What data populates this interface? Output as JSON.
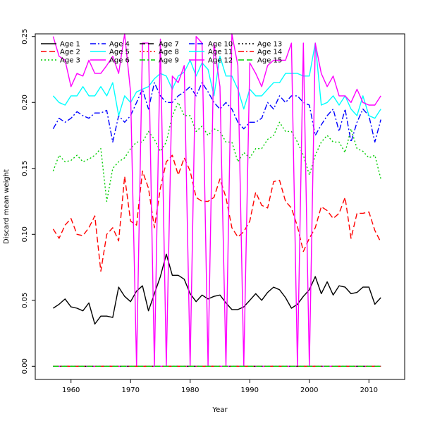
{
  "chart_data": {
    "type": "line",
    "title": "",
    "xlabel": "Year",
    "ylabel": "Discard mean weight",
    "xlim": [
      1954,
      2016
    ],
    "ylim": [
      -0.01,
      0.252
    ],
    "x_ticks": [
      1960,
      1970,
      1980,
      1990,
      2000,
      2010
    ],
    "y_ticks": [
      0.0,
      0.05,
      0.1,
      0.15,
      0.2,
      0.25
    ],
    "y_tick_labels": [
      "0.00",
      "0.05",
      "0.10",
      "0.15",
      "0.20",
      "0.25"
    ],
    "grid": false,
    "legend_position": "top-left",
    "x": [
      1957,
      1958,
      1959,
      1960,
      1961,
      1962,
      1963,
      1964,
      1965,
      1966,
      1967,
      1968,
      1969,
      1970,
      1971,
      1972,
      1973,
      1974,
      1975,
      1976,
      1977,
      1978,
      1979,
      1980,
      1981,
      1982,
      1983,
      1984,
      1985,
      1986,
      1987,
      1988,
      1989,
      1990,
      1991,
      1992,
      1993,
      1994,
      1995,
      1996,
      1997,
      1998,
      1999,
      2000,
      2001,
      2002,
      2003,
      2004,
      2005,
      2006,
      2007,
      2008,
      2009,
      2010,
      2011,
      2012
    ],
    "series": [
      {
        "name": "Age 1",
        "color": "#000000",
        "dash": "solid",
        "values": [
          0.044,
          0.047,
          0.051,
          0.045,
          0.044,
          0.042,
          0.048,
          0.032,
          0.038,
          0.038,
          0.037,
          0.06,
          0.053,
          0.049,
          0.057,
          0.061,
          0.042,
          0.055,
          0.068,
          0.085,
          0.069,
          0.069,
          0.066,
          0.055,
          0.049,
          0.054,
          0.051,
          0.053,
          0.054,
          0.048,
          0.043,
          0.043,
          0.045,
          0.05,
          0.055,
          0.05,
          0.056,
          0.06,
          0.058,
          0.052,
          0.044,
          0.047,
          0.053,
          0.058,
          0.068,
          0.055,
          0.064,
          0.054,
          0.061,
          0.06,
          0.055,
          0.056,
          0.06,
          0.06,
          0.047,
          0.052
        ]
      },
      {
        "name": "Age 2",
        "color": "#ff0000",
        "dash": "8,4",
        "values": [
          0.104,
          0.097,
          0.107,
          0.112,
          0.1,
          0.099,
          0.105,
          0.114,
          0.072,
          0.1,
          0.105,
          0.095,
          0.144,
          0.11,
          0.107,
          0.148,
          0.135,
          0.105,
          0.135,
          0.155,
          0.16,
          0.145,
          0.158,
          0.148,
          0.128,
          0.125,
          0.125,
          0.128,
          0.142,
          0.128,
          0.105,
          0.098,
          0.102,
          0.11,
          0.132,
          0.122,
          0.12,
          0.14,
          0.141,
          0.125,
          0.12,
          0.106,
          0.087,
          0.097,
          0.105,
          0.121,
          0.118,
          0.112,
          0.116,
          0.128,
          0.097,
          0.116,
          0.116,
          0.117,
          0.103,
          0.094
        ]
      },
      {
        "name": "Age 3",
        "color": "#00cd00",
        "dash": "2,3",
        "values": [
          0.148,
          0.16,
          0.155,
          0.156,
          0.16,
          0.155,
          0.157,
          0.16,
          0.165,
          0.125,
          0.15,
          0.155,
          0.158,
          0.165,
          0.17,
          0.17,
          0.178,
          0.172,
          0.163,
          0.17,
          0.19,
          0.2,
          0.19,
          0.19,
          0.178,
          0.182,
          0.175,
          0.18,
          0.178,
          0.17,
          0.17,
          0.155,
          0.162,
          0.158,
          0.165,
          0.165,
          0.172,
          0.175,
          0.185,
          0.178,
          0.178,
          0.17,
          0.16,
          0.145,
          0.16,
          0.17,
          0.175,
          0.17,
          0.17,
          0.162,
          0.18,
          0.165,
          0.163,
          0.158,
          0.16,
          0.142
        ]
      },
      {
        "name": "Age 4",
        "color": "#0000ff",
        "dash": "8,3,2,3",
        "values": [
          0.18,
          0.188,
          0.185,
          0.188,
          0.193,
          0.19,
          0.188,
          0.192,
          0.192,
          0.194,
          0.17,
          0.19,
          0.185,
          0.19,
          0.2,
          0.21,
          0.195,
          0.215,
          0.205,
          0.2,
          0.2,
          0.205,
          0.208,
          0.212,
          0.205,
          0.215,
          0.208,
          0.2,
          0.195,
          0.2,
          0.195,
          0.185,
          0.18,
          0.185,
          0.185,
          0.188,
          0.2,
          0.195,
          0.205,
          0.2,
          0.205,
          0.205,
          0.2,
          0.198,
          0.175,
          0.183,
          0.19,
          0.195,
          0.178,
          0.195,
          0.17,
          0.185,
          0.195,
          0.19,
          0.17,
          0.187
        ]
      },
      {
        "name": "Age 5",
        "color": "#00ffff",
        "dash": "solid",
        "values": [
          0.205,
          0.2,
          0.198,
          0.205,
          0.205,
          0.212,
          0.205,
          0.205,
          0.212,
          0.205,
          0.215,
          0.19,
          0.205,
          0.2,
          0.208,
          0.21,
          0.212,
          0.218,
          0.222,
          0.22,
          0.21,
          0.22,
          0.223,
          0.232,
          0.22,
          0.23,
          0.225,
          0.205,
          0.235,
          0.22,
          0.22,
          0.21,
          0.195,
          0.21,
          0.205,
          0.205,
          0.21,
          0.215,
          0.215,
          0.222,
          0.222,
          0.222,
          0.22,
          0.22,
          0.245,
          0.198,
          0.2,
          0.205,
          0.198,
          0.205,
          0.195,
          0.19,
          0.205,
          0.19,
          0.188,
          0.195
        ]
      },
      {
        "name": "Age 6",
        "color": "#ff00ff",
        "dash": "solid",
        "values": [
          0.25,
          0.235,
          0.232,
          0.212,
          0.222,
          0.22,
          0.232,
          0.222,
          0.222,
          0.228,
          0.235,
          0.222,
          0.252,
          0.208,
          0.0,
          0.245,
          0.245,
          0.0,
          0.248,
          0.0,
          0.22,
          0.215,
          0.228,
          0.0,
          0.25,
          0.245,
          0.0,
          0.245,
          0.212,
          0.0,
          0.252,
          0.228,
          0.0,
          0.23,
          0.222,
          0.212,
          0.228,
          0.232,
          0.232,
          0.232,
          0.245,
          0.0,
          0.245,
          0.0,
          0.245,
          0.222,
          0.212,
          0.22,
          0.205,
          0.205,
          0.2,
          0.21,
          0.2,
          0.198,
          0.198,
          0.205
        ]
      },
      {
        "name": "Age 7",
        "color": "#000000",
        "dash": "8,4",
        "values": [
          0.0,
          0.0,
          0.0,
          0.0,
          0.0,
          0.0,
          0.0,
          0.0,
          0.0,
          0.0,
          0.0,
          0.0,
          0.0,
          0.0,
          0.0,
          0.0,
          0.0,
          0.0,
          0.0,
          0.0,
          0.0,
          0.0,
          0.0,
          0.0,
          0.0,
          0.0,
          0.0,
          0.0,
          0.0,
          0.0,
          0.0,
          0.0,
          0.0,
          0.0,
          0.0,
          0.0,
          0.0,
          0.0,
          0.0,
          0.0,
          0.0,
          0.0,
          0.0,
          0.0,
          0.0,
          0.0,
          0.0,
          0.0,
          0.0,
          0.0,
          0.0,
          0.0,
          0.0,
          0.0,
          0.0,
          0.0
        ]
      },
      {
        "name": "Age 8",
        "color": "#ff0000",
        "dash": "2,3",
        "values": [
          0.0,
          0.0,
          0.0,
          0.0,
          0.0,
          0.0,
          0.0,
          0.0,
          0.0,
          0.0,
          0.0,
          0.0,
          0.0,
          0.0,
          0.0,
          0.0,
          0.0,
          0.0,
          0.0,
          0.0,
          0.0,
          0.0,
          0.0,
          0.0,
          0.0,
          0.0,
          0.0,
          0.0,
          0.0,
          0.0,
          0.0,
          0.0,
          0.0,
          0.0,
          0.0,
          0.0,
          0.0,
          0.0,
          0.0,
          0.0,
          0.0,
          0.0,
          0.0,
          0.0,
          0.0,
          0.0,
          0.0,
          0.0,
          0.0,
          0.0,
          0.0,
          0.0,
          0.0,
          0.0,
          0.0,
          0.0
        ]
      },
      {
        "name": "Age 9",
        "color": "#00cd00",
        "dash": "8,3,2,3",
        "values": [
          0.0,
          0.0,
          0.0,
          0.0,
          0.0,
          0.0,
          0.0,
          0.0,
          0.0,
          0.0,
          0.0,
          0.0,
          0.0,
          0.0,
          0.0,
          0.0,
          0.0,
          0.0,
          0.0,
          0.0,
          0.0,
          0.0,
          0.0,
          0.0,
          0.0,
          0.0,
          0.0,
          0.0,
          0.0,
          0.0,
          0.0,
          0.0,
          0.0,
          0.0,
          0.0,
          0.0,
          0.0,
          0.0,
          0.0,
          0.0,
          0.0,
          0.0,
          0.0,
          0.0,
          0.0,
          0.0,
          0.0,
          0.0,
          0.0,
          0.0,
          0.0,
          0.0,
          0.0,
          0.0,
          0.0,
          0.0
        ]
      },
      {
        "name": "Age 10",
        "color": "#0000ff",
        "dash": "8,4",
        "values": [
          0.0,
          0.0,
          0.0,
          0.0,
          0.0,
          0.0,
          0.0,
          0.0,
          0.0,
          0.0,
          0.0,
          0.0,
          0.0,
          0.0,
          0.0,
          0.0,
          0.0,
          0.0,
          0.0,
          0.0,
          0.0,
          0.0,
          0.0,
          0.0,
          0.0,
          0.0,
          0.0,
          0.0,
          0.0,
          0.0,
          0.0,
          0.0,
          0.0,
          0.0,
          0.0,
          0.0,
          0.0,
          0.0,
          0.0,
          0.0,
          0.0,
          0.0,
          0.0,
          0.0,
          0.0,
          0.0,
          0.0,
          0.0,
          0.0,
          0.0,
          0.0,
          0.0,
          0.0,
          0.0,
          0.0,
          0.0
        ]
      },
      {
        "name": "Age 11",
        "color": "#00ffff",
        "dash": "solid",
        "values": [
          0.0,
          0.0,
          0.0,
          0.0,
          0.0,
          0.0,
          0.0,
          0.0,
          0.0,
          0.0,
          0.0,
          0.0,
          0.0,
          0.0,
          0.0,
          0.0,
          0.0,
          0.0,
          0.0,
          0.0,
          0.0,
          0.0,
          0.0,
          0.0,
          0.0,
          0.0,
          0.0,
          0.0,
          0.0,
          0.0,
          0.0,
          0.0,
          0.0,
          0.0,
          0.0,
          0.0,
          0.0,
          0.0,
          0.0,
          0.0,
          0.0,
          0.0,
          0.0,
          0.0,
          0.0,
          0.0,
          0.0,
          0.0,
          0.0,
          0.0,
          0.0,
          0.0,
          0.0,
          0.0,
          0.0,
          0.0
        ]
      },
      {
        "name": "Age 12",
        "color": "#ff00ff",
        "dash": "solid",
        "values": [
          0.0,
          0.0,
          0.0,
          0.0,
          0.0,
          0.0,
          0.0,
          0.0,
          0.0,
          0.0,
          0.0,
          0.0,
          0.0,
          0.0,
          0.0,
          0.0,
          0.0,
          0.0,
          0.0,
          0.0,
          0.0,
          0.0,
          0.0,
          0.0,
          0.0,
          0.0,
          0.0,
          0.0,
          0.0,
          0.0,
          0.0,
          0.0,
          0.0,
          0.0,
          0.0,
          0.0,
          0.0,
          0.0,
          0.0,
          0.0,
          0.0,
          0.0,
          0.0,
          0.0,
          0.0,
          0.0,
          0.0,
          0.0,
          0.0,
          0.0,
          0.0,
          0.0,
          0.0,
          0.0,
          0.0,
          0.0
        ]
      },
      {
        "name": "Age 13",
        "color": "#000000",
        "dash": "2,3",
        "values": [
          0.0,
          0.0,
          0.0,
          0.0,
          0.0,
          0.0,
          0.0,
          0.0,
          0.0,
          0.0,
          0.0,
          0.0,
          0.0,
          0.0,
          0.0,
          0.0,
          0.0,
          0.0,
          0.0,
          0.0,
          0.0,
          0.0,
          0.0,
          0.0,
          0.0,
          0.0,
          0.0,
          0.0,
          0.0,
          0.0,
          0.0,
          0.0,
          0.0,
          0.0,
          0.0,
          0.0,
          0.0,
          0.0,
          0.0,
          0.0,
          0.0,
          0.0,
          0.0,
          0.0,
          0.0,
          0.0,
          0.0,
          0.0,
          0.0,
          0.0,
          0.0,
          0.0,
          0.0,
          0.0,
          0.0,
          0.0
        ]
      },
      {
        "name": "Age 14",
        "color": "#ff0000",
        "dash": "8,3,2,3",
        "values": [
          0.0,
          0.0,
          0.0,
          0.0,
          0.0,
          0.0,
          0.0,
          0.0,
          0.0,
          0.0,
          0.0,
          0.0,
          0.0,
          0.0,
          0.0,
          0.0,
          0.0,
          0.0,
          0.0,
          0.0,
          0.0,
          0.0,
          0.0,
          0.0,
          0.0,
          0.0,
          0.0,
          0.0,
          0.0,
          0.0,
          0.0,
          0.0,
          0.0,
          0.0,
          0.0,
          0.0,
          0.0,
          0.0,
          0.0,
          0.0,
          0.0,
          0.0,
          0.0,
          0.0,
          0.0,
          0.0,
          0.0,
          0.0,
          0.0,
          0.0,
          0.0,
          0.0,
          0.0,
          0.0,
          0.0,
          0.0
        ]
      },
      {
        "name": "Age 15",
        "color": "#00cd00",
        "dash": "8,4",
        "values": [
          0.0,
          0.0,
          0.0,
          0.0,
          0.0,
          0.0,
          0.0,
          0.0,
          0.0,
          0.0,
          0.0,
          0.0,
          0.0,
          0.0,
          0.0,
          0.0,
          0.0,
          0.0,
          0.0,
          0.0,
          0.0,
          0.0,
          0.0,
          0.0,
          0.0,
          0.0,
          0.0,
          0.0,
          0.0,
          0.0,
          0.0,
          0.0,
          0.0,
          0.0,
          0.0,
          0.0,
          0.0,
          0.0,
          0.0,
          0.0,
          0.0,
          0.0,
          0.0,
          0.0,
          0.0,
          0.0,
          0.0,
          0.0,
          0.0,
          0.0,
          0.0,
          0.0,
          0.0,
          0.0,
          0.0,
          0.0
        ]
      }
    ]
  }
}
